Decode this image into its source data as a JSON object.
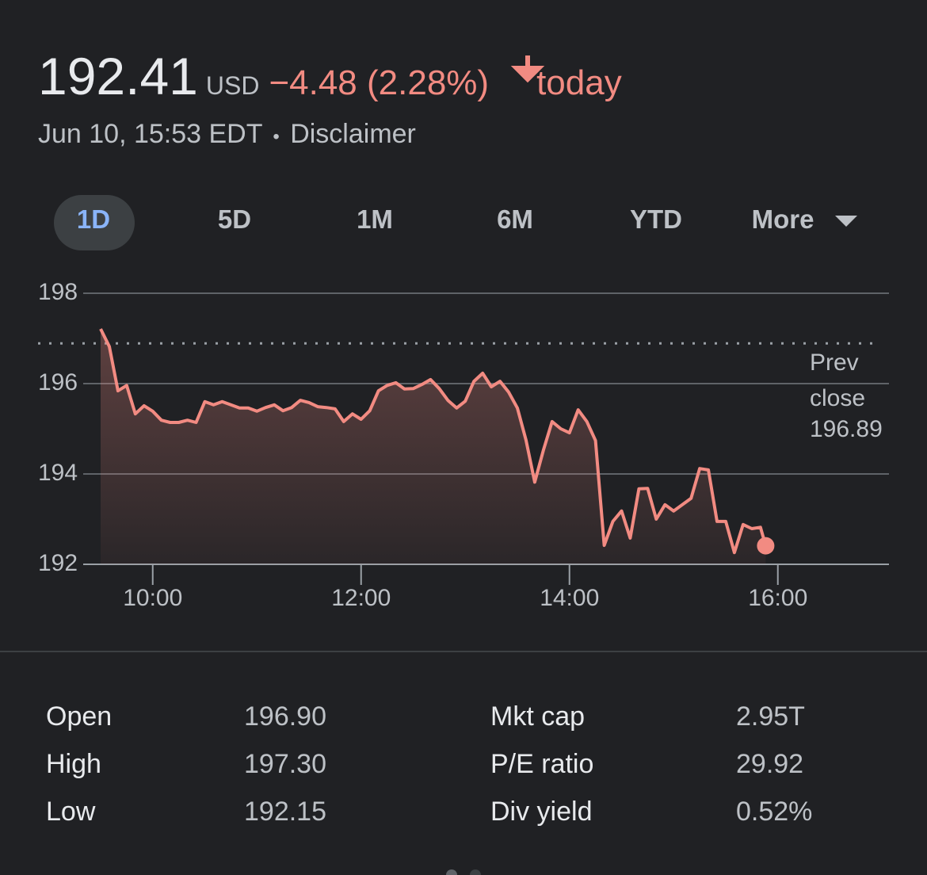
{
  "header": {
    "price": "192.41",
    "currency": "USD",
    "change": "−4.48 (2.28%)",
    "today": "today",
    "timestamp": "Jun 10, 15:53 EDT",
    "separator": "•",
    "disclaimer": "Disclaimer"
  },
  "tabs": [
    "1D",
    "5D",
    "1M",
    "6M",
    "YTD",
    "More"
  ],
  "chart_data": {
    "type": "line",
    "x": [
      570,
      575,
      580,
      585,
      590,
      595,
      600,
      605,
      610,
      615,
      620,
      625,
      630,
      635,
      640,
      645,
      650,
      655,
      660,
      665,
      670,
      675,
      680,
      685,
      690,
      695,
      700,
      705,
      710,
      715,
      720,
      725,
      730,
      735,
      740,
      745,
      750,
      755,
      760,
      765,
      770,
      775,
      780,
      785,
      790,
      795,
      800,
      805,
      810,
      815,
      820,
      825,
      830,
      835,
      840,
      845,
      850,
      855,
      860,
      865,
      870,
      875,
      880,
      885,
      890,
      895,
      900,
      905,
      910,
      915,
      920,
      925,
      930,
      935,
      940,
      945,
      950,
      953
    ],
    "series": [
      {
        "color": "#f28b82",
        "values": [
          197.21,
          196.82,
          195.84,
          195.96,
          195.33,
          195.51,
          195.39,
          195.19,
          195.14,
          195.14,
          195.19,
          195.14,
          195.6,
          195.53,
          195.6,
          195.53,
          195.46,
          195.46,
          195.39,
          195.47,
          195.53,
          195.4,
          195.47,
          195.63,
          195.58,
          195.49,
          195.47,
          195.44,
          195.16,
          195.33,
          195.21,
          195.4,
          195.84,
          195.96,
          196.02,
          195.88,
          195.89,
          195.98,
          196.09,
          195.89,
          195.63,
          195.46,
          195.61,
          196.05,
          196.23,
          195.93,
          196.05,
          195.81,
          195.46,
          194.75,
          193.82,
          194.53,
          195.16,
          195.0,
          194.91,
          195.42,
          195.16,
          194.74,
          192.42,
          192.95,
          193.18,
          192.58,
          193.67,
          193.68,
          193.0,
          193.32,
          193.18,
          193.32,
          193.46,
          194.12,
          194.09,
          192.95,
          192.95,
          192.26,
          192.88,
          192.79,
          192.82,
          192.41
        ]
      }
    ],
    "xlim": [
      570,
      1024
    ],
    "xticks": [
      {
        "value": 600,
        "label": "10:00"
      },
      {
        "value": 720,
        "label": "12:00"
      },
      {
        "value": 840,
        "label": "14:00"
      },
      {
        "value": 960,
        "label": "16:00"
      }
    ],
    "ylim": [
      192,
      198
    ],
    "yticks": [
      192,
      194,
      196,
      198
    ],
    "grid": true,
    "prev_close_label": "Prev close",
    "prev_close": 196.89
  },
  "stats": {
    "rows": [
      [
        "Open",
        "196.90",
        "Mkt cap",
        "2.95T"
      ],
      [
        "High",
        "197.30",
        "P/E ratio",
        "29.92"
      ],
      [
        "Low",
        "192.15",
        "Div yield",
        "0.52%"
      ]
    ]
  }
}
